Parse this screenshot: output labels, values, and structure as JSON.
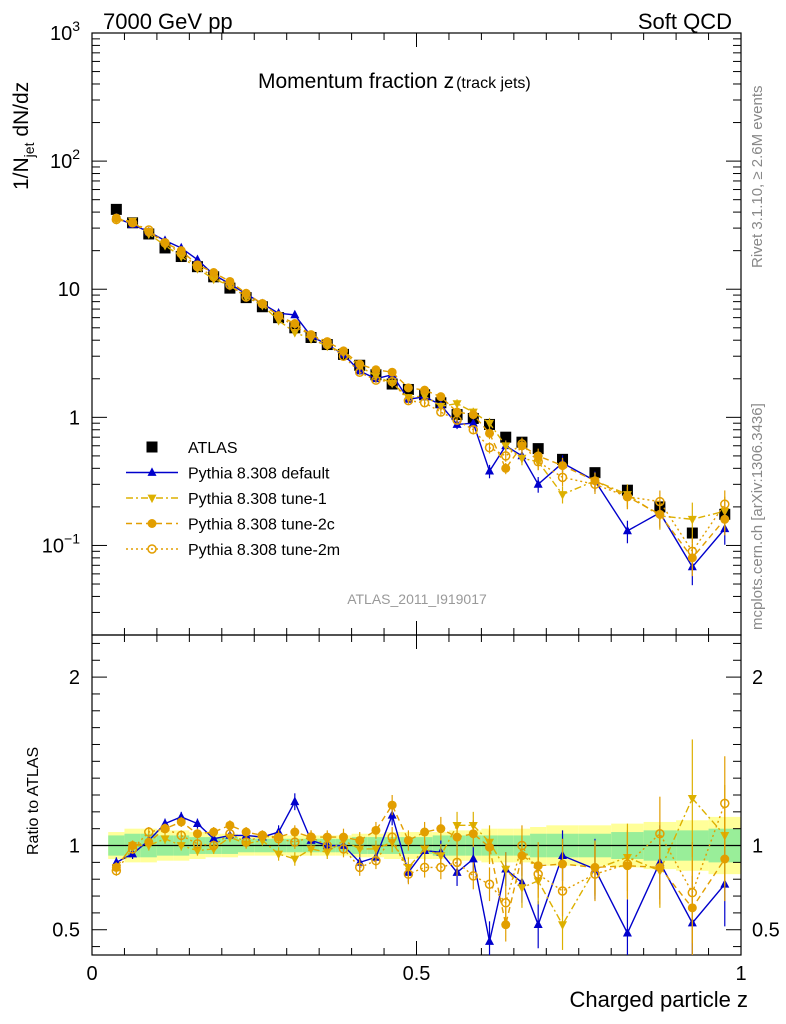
{
  "header": {
    "left": "7000 GeV pp",
    "right": "Soft QCD"
  },
  "side_labels": {
    "rivet": "Rivet 3.1.10, ≥ 2.6M events",
    "mcplots": "mcplots.cern.ch [arXiv:1306.3436]"
  },
  "chart_data": {
    "type": "line",
    "title": "Momentum fraction z",
    "title_suffix": "(track jets)",
    "analysis_id": "ATLAS_2011_I919017",
    "xlabel": "Charged particle z",
    "ylabel": {
      "main": "1/N",
      "sub": "jet",
      "rest": " dN/dz"
    },
    "ratio_ylabel": "Ratio to ATLAS",
    "xlim": [
      0,
      1
    ],
    "ylim": [
      0.02,
      1000
    ],
    "yscale": "log",
    "ratio_ylim": [
      0.35,
      2.25
    ],
    "x_ticks": [
      "0",
      "0.5",
      "1"
    ],
    "y_ticks": [
      "10−1",
      "1",
      "10",
      "10²",
      "10³"
    ],
    "ratio_ticks": [
      "0.5",
      "1",
      "2"
    ],
    "legend_position": "bottom-left",
    "x": [
      0.0375,
      0.0625,
      0.0875,
      0.1125,
      0.1375,
      0.1625,
      0.1875,
      0.2125,
      0.2375,
      0.2625,
      0.2875,
      0.3125,
      0.3375,
      0.3625,
      0.3875,
      0.4125,
      0.4375,
      0.4625,
      0.4875,
      0.5125,
      0.5375,
      0.5625,
      0.5875,
      0.6125,
      0.6375,
      0.6625,
      0.6875,
      0.725,
      0.775,
      0.825,
      0.875,
      0.925,
      0.975
    ],
    "bin_edges": [
      0.025,
      0.05,
      0.075,
      0.1,
      0.125,
      0.15,
      0.175,
      0.2,
      0.225,
      0.25,
      0.275,
      0.3,
      0.325,
      0.35,
      0.375,
      0.4,
      0.425,
      0.45,
      0.475,
      0.5,
      0.525,
      0.55,
      0.575,
      0.6,
      0.625,
      0.65,
      0.675,
      0.7,
      0.75,
      0.8,
      0.85,
      0.9,
      0.95,
      1.0
    ],
    "band_inner": [
      0.06,
      0.07,
      0.07,
      0.06,
      0.06,
      0.05,
      0.05,
      0.05,
      0.04,
      0.04,
      0.04,
      0.04,
      0.04,
      0.04,
      0.04,
      0.05,
      0.05,
      0.05,
      0.05,
      0.05,
      0.06,
      0.06,
      0.06,
      0.06,
      0.06,
      0.06,
      0.07,
      0.07,
      0.07,
      0.08,
      0.09,
      0.09,
      0.1
    ],
    "band_outer": [
      0.08,
      0.1,
      0.1,
      0.09,
      0.09,
      0.08,
      0.07,
      0.07,
      0.06,
      0.06,
      0.06,
      0.06,
      0.06,
      0.06,
      0.06,
      0.07,
      0.07,
      0.08,
      0.08,
      0.08,
      0.08,
      0.09,
      0.09,
      0.1,
      0.1,
      0.1,
      0.11,
      0.12,
      0.12,
      0.13,
      0.14,
      0.15,
      0.17
    ],
    "series": [
      {
        "name": "ATLAS",
        "color": "#000000",
        "marker": "square",
        "line": "none",
        "values": [
          42,
          33,
          27,
          21,
          18,
          15,
          12.5,
          10.2,
          8.6,
          7.3,
          6.0,
          5.0,
          4.2,
          3.7,
          3.1,
          2.55,
          2.15,
          1.82,
          1.65,
          1.5,
          1.3,
          1.05,
          0.98,
          0.88,
          0.7,
          0.64,
          0.57,
          0.47,
          0.37,
          0.27,
          0.2,
          0.125,
          0.175
        ],
        "ratio": [],
        "yerr": []
      },
      {
        "name": "Pythia 8.308 default",
        "color": "#0000cc",
        "marker": "triangle-up",
        "line": "solid",
        "values": [
          36,
          32,
          28,
          24,
          21,
          17,
          13,
          11,
          9.2,
          7.7,
          6.5,
          6.3,
          4.3,
          3.7,
          3.1,
          2.3,
          2.0,
          2.15,
          1.38,
          1.45,
          1.25,
          0.88,
          0.9,
          0.38,
          0.6,
          0.5,
          0.3,
          0.44,
          0.32,
          0.13,
          0.18,
          0.068,
          0.135
        ],
        "ratio": [
          0.9,
          0.95,
          1.03,
          1.13,
          1.17,
          1.13,
          1.04,
          1.06,
          1.06,
          1.05,
          1.08,
          1.26,
          1.03,
          1.0,
          1.0,
          0.9,
          0.93,
          1.18,
          0.84,
          0.97,
          0.96,
          0.84,
          0.92,
          0.43,
          0.86,
          0.78,
          0.53,
          0.94,
          0.86,
          0.48,
          0.9,
          0.54,
          0.77
        ],
        "yerr": [
          0.03,
          0.03,
          0.03,
          0.03,
          0.03,
          0.03,
          0.03,
          0.03,
          0.03,
          0.03,
          0.04,
          0.05,
          0.04,
          0.04,
          0.05,
          0.05,
          0.05,
          0.06,
          0.06,
          0.06,
          0.07,
          0.08,
          0.08,
          0.12,
          0.1,
          0.12,
          0.14,
          0.15,
          0.18,
          0.2,
          0.22,
          0.28,
          0.25
        ]
      },
      {
        "name": "Pythia 8.308 tune-1",
        "color": "#ddb000",
        "marker": "triangle-down",
        "line": "dashdot",
        "values": [
          35,
          34,
          27,
          22,
          18,
          14.5,
          12,
          10.7,
          8.7,
          7.5,
          5.7,
          4.6,
          4.1,
          3.6,
          3.2,
          2.5,
          2.1,
          1.85,
          1.43,
          1.47,
          1.22,
          1.28,
          1.1,
          0.9,
          0.6,
          0.48,
          0.45,
          0.25,
          0.32,
          0.25,
          0.17,
          0.16,
          0.185
        ],
        "ratio": [
          0.87,
          1.0,
          1.0,
          1.04,
          1.0,
          0.97,
          0.98,
          1.05,
          1.01,
          1.03,
          0.95,
          0.92,
          0.98,
          0.96,
          1.03,
          0.98,
          0.98,
          1.02,
          0.87,
          0.98,
          0.94,
          1.12,
          1.12,
          1.02,
          0.86,
          0.75,
          0.79,
          0.53,
          0.86,
          0.93,
          0.85,
          1.28,
          1.06
        ],
        "yerr": [
          0.03,
          0.03,
          0.03,
          0.03,
          0.03,
          0.03,
          0.03,
          0.03,
          0.03,
          0.03,
          0.04,
          0.04,
          0.04,
          0.04,
          0.05,
          0.05,
          0.05,
          0.06,
          0.06,
          0.06,
          0.07,
          0.08,
          0.08,
          0.1,
          0.1,
          0.12,
          0.14,
          0.15,
          0.16,
          0.2,
          0.22,
          0.35,
          0.3
        ]
      },
      {
        "name": "Pythia 8.308 tune-2c",
        "color": "#e29e00",
        "marker": "circle",
        "line": "dashed",
        "values": [
          36,
          33,
          28,
          23,
          20,
          15.5,
          13.5,
          11.5,
          9.3,
          7.7,
          6.2,
          5.4,
          4.4,
          3.9,
          3.3,
          2.6,
          2.35,
          2.25,
          1.7,
          1.63,
          1.45,
          1.1,
          1.05,
          0.75,
          0.4,
          0.6,
          0.5,
          0.42,
          0.32,
          0.24,
          0.175,
          0.08,
          0.16
        ],
        "ratio": [
          0.87,
          1.0,
          1.02,
          1.1,
          1.14,
          1.07,
          1.08,
          1.12,
          1.08,
          1.06,
          1.05,
          1.08,
          1.05,
          1.05,
          1.05,
          1.03,
          1.09,
          1.24,
          1.03,
          1.08,
          1.1,
          1.05,
          1.07,
          0.99,
          0.53,
          0.94,
          0.88,
          0.89,
          0.87,
          0.88,
          0.87,
          0.63,
          0.92
        ],
        "yerr": [
          0.03,
          0.03,
          0.03,
          0.03,
          0.03,
          0.03,
          0.03,
          0.03,
          0.03,
          0.03,
          0.04,
          0.04,
          0.04,
          0.04,
          0.05,
          0.05,
          0.05,
          0.06,
          0.06,
          0.06,
          0.07,
          0.08,
          0.08,
          0.1,
          0.1,
          0.12,
          0.14,
          0.15,
          0.16,
          0.2,
          0.22,
          0.28,
          0.25
        ]
      },
      {
        "name": "Pythia 8.308 tune-2m",
        "color": "#e29e00",
        "marker": "circle-open",
        "line": "dotted",
        "values": [
          35,
          33,
          29,
          23,
          19,
          15,
          12.5,
          10.8,
          8.7,
          7.7,
          6.2,
          5.1,
          4.4,
          3.7,
          3.0,
          2.25,
          1.95,
          1.9,
          1.35,
          1.3,
          1.1,
          0.95,
          0.8,
          0.58,
          0.5,
          0.62,
          0.45,
          0.34,
          0.3,
          0.24,
          0.22,
          0.09,
          0.21
        ],
        "ratio": [
          0.85,
          0.98,
          1.08,
          1.1,
          1.06,
          1.01,
          1.0,
          1.07,
          1.02,
          1.06,
          1.04,
          1.02,
          1.05,
          1.0,
          0.98,
          0.87,
          0.91,
          1.05,
          0.83,
          0.87,
          0.87,
          0.9,
          0.82,
          0.77,
          0.66,
          1.0,
          0.83,
          0.73,
          0.83,
          0.89,
          1.07,
          0.72,
          1.25
        ],
        "yerr": [
          0.03,
          0.03,
          0.03,
          0.03,
          0.03,
          0.03,
          0.03,
          0.03,
          0.03,
          0.03,
          0.04,
          0.04,
          0.04,
          0.04,
          0.05,
          0.05,
          0.05,
          0.06,
          0.06,
          0.06,
          0.07,
          0.08,
          0.08,
          0.1,
          0.1,
          0.12,
          0.14,
          0.15,
          0.16,
          0.2,
          0.22,
          0.3,
          0.28
        ]
      }
    ]
  }
}
